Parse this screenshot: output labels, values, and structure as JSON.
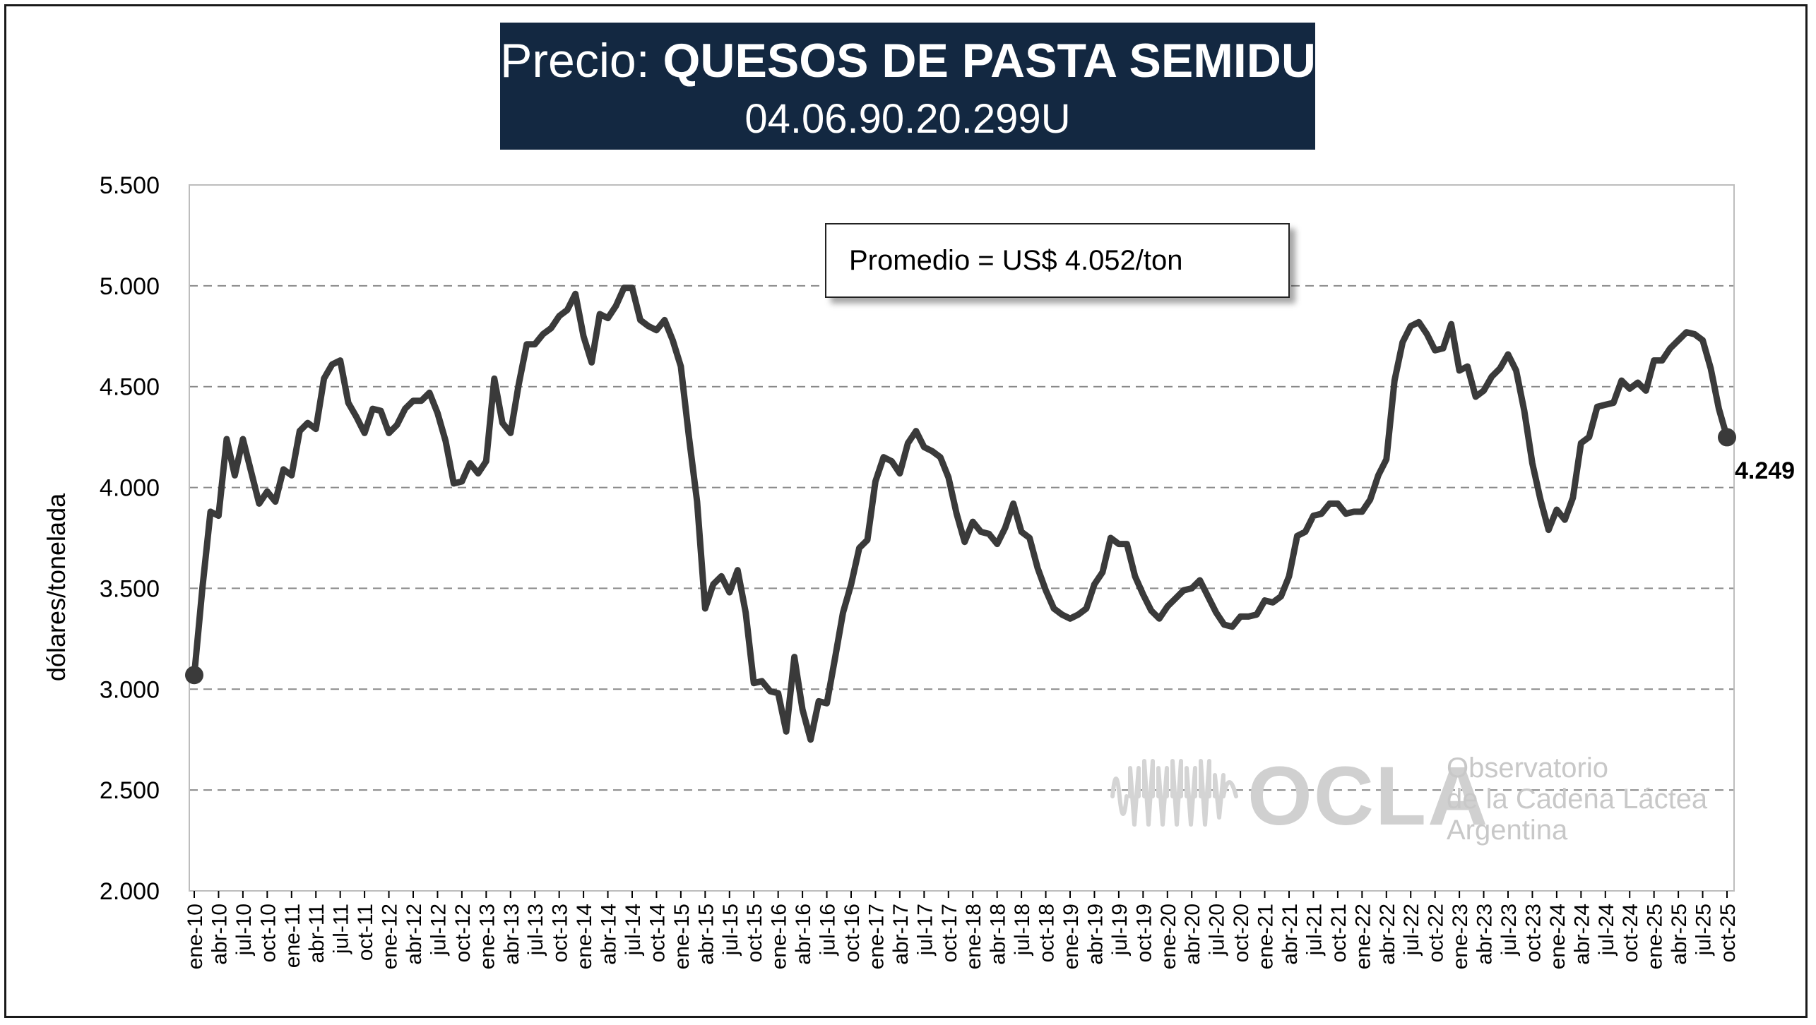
{
  "title": {
    "prefix": "Precio: ",
    "main": "QUESOS DE PASTA SEMIDURA",
    "code": "04.06.90.20.299U"
  },
  "annotation": {
    "average": "Promedio = US$ 4.052/ton",
    "last_value_label": "4.249"
  },
  "watermark": {
    "logo": "OCLA",
    "line1": "Observatorio",
    "line2": "de la Cadena Láctea",
    "line3": "Argentina"
  },
  "chart_data": {
    "type": "line",
    "title": "",
    "xlabel": "",
    "ylabel": "dólares/tonelada",
    "ylim": [
      2000,
      5500
    ],
    "yticks": [
      "2.000",
      "2.500",
      "3.000",
      "3.500",
      "4.000",
      "4.500",
      "5.000",
      "5.500"
    ],
    "ytick_values": [
      2000,
      2500,
      3000,
      3500,
      4000,
      4500,
      5000,
      5500
    ],
    "xtick_labels": [
      "ene-10",
      "abr-10",
      "jul-10",
      "oct-10",
      "ene-11",
      "abr-11",
      "jul-11",
      "oct-11",
      "ene-12",
      "abr-12",
      "jul-12",
      "oct-12",
      "ene-13",
      "abr-13",
      "jul-13",
      "oct-13",
      "ene-14",
      "abr-14",
      "jul-14",
      "oct-14",
      "ene-15",
      "abr-15",
      "jul-15",
      "oct-15",
      "ene-16",
      "abr-16",
      "jul-16",
      "oct-16",
      "ene-17",
      "abr-17",
      "jul-17",
      "oct-17",
      "ene-18",
      "abr-18",
      "jul-18",
      "oct-18",
      "ene-19",
      "abr-19",
      "jul-19",
      "oct-19",
      "ene-20",
      "abr-20",
      "jul-20",
      "oct-20",
      "ene-21",
      "abr-21",
      "jul-21",
      "oct-21",
      "ene-22",
      "abr-22",
      "jul-22",
      "oct-22",
      "ene-23",
      "abr-23",
      "jul-23",
      "oct-23",
      "ene-24",
      "abr-24",
      "jul-24",
      "oct-24",
      "ene-25",
      "abr-25",
      "jul-25",
      "oct-25"
    ],
    "grid": "horizontal dashed",
    "line_color": "#3a3a3a",
    "series": [
      {
        "start": "ene-10",
        "frequency": "monthly",
        "values": [
          3070,
          3500,
          3880,
          3860,
          4240,
          4060,
          4240,
          4080,
          3920,
          3980,
          3930,
          4090,
          4060,
          4280,
          4320,
          4290,
          4540,
          4610,
          4630,
          4420,
          4350,
          4270,
          4390,
          4380,
          4270,
          4310,
          4390,
          4430,
          4430,
          4470,
          4370,
          4230,
          4020,
          4030,
          4120,
          4070,
          4130,
          4540,
          4320,
          4270,
          4510,
          4710,
          4710,
          4760,
          4790,
          4850,
          4880,
          4960,
          4750,
          4620,
          4860,
          4840,
          4900,
          4990,
          4990,
          4830,
          4800,
          4780,
          4830,
          4730,
          4600,
          4250,
          3930,
          3400,
          3520,
          3560,
          3480,
          3590,
          3380,
          3030,
          3040,
          2990,
          2980,
          2790,
          3160,
          2900,
          2750,
          2940,
          2930,
          3150,
          3380,
          3520,
          3700,
          3740,
          4030,
          4150,
          4130,
          4070,
          4220,
          4280,
          4200,
          4180,
          4150,
          4050,
          3870,
          3730,
          3830,
          3780,
          3770,
          3720,
          3800,
          3920,
          3780,
          3750,
          3600,
          3490,
          3400,
          3370,
          3350,
          3370,
          3400,
          3520,
          3580,
          3750,
          3720,
          3720,
          3560,
          3470,
          3390,
          3350,
          3410,
          3450,
          3490,
          3500,
          3540,
          3460,
          3380,
          3320,
          3310,
          3360,
          3360,
          3370,
          3440,
          3430,
          3460,
          3560,
          3760,
          3780,
          3860,
          3870,
          3920,
          3920,
          3870,
          3880,
          3880,
          3940,
          4060,
          4140,
          4530,
          4720,
          4800,
          4820,
          4760,
          4680,
          4690,
          4810,
          4580,
          4600,
          4450,
          4480,
          4550,
          4590,
          4660,
          4580,
          4380,
          4120,
          3940,
          3790,
          3890,
          3840,
          3950,
          4220,
          4250,
          4400,
          4410,
          4420,
          4530,
          4490,
          4520,
          4480,
          4630,
          4630,
          4690,
          4730,
          4770,
          4760,
          4730,
          4590,
          4390,
          4249
        ]
      }
    ]
  }
}
